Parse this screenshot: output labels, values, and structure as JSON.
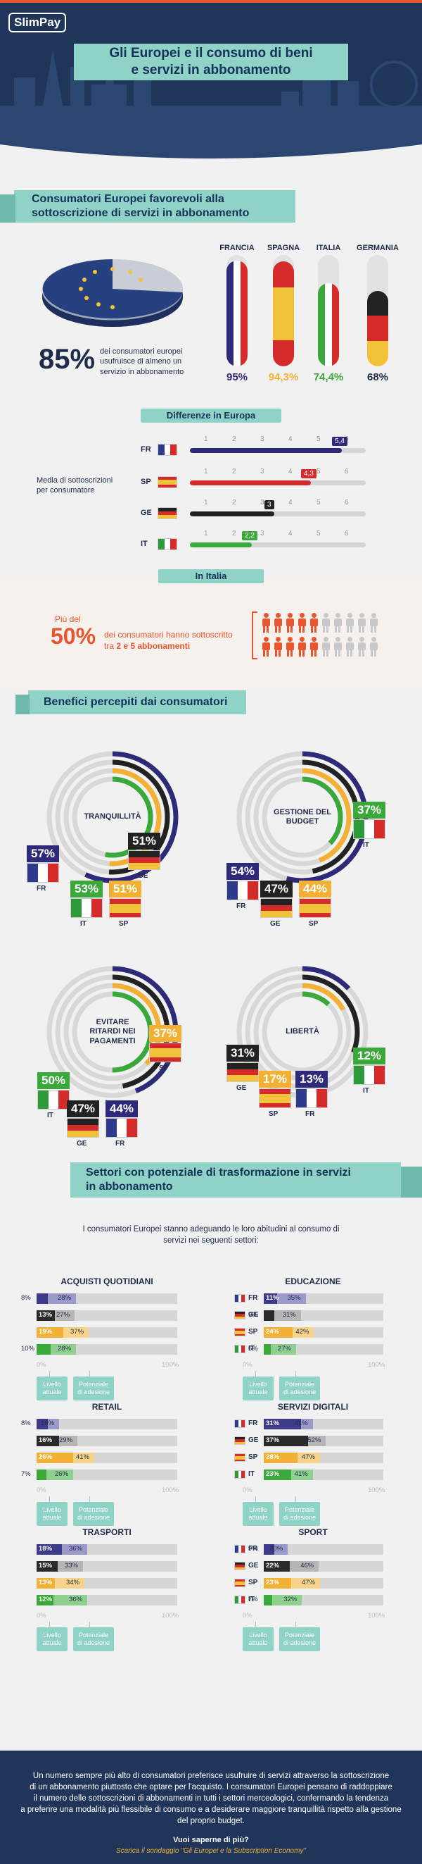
{
  "header": {
    "logo": "SlimPay",
    "title_line1": "Gli Europei e il consumo di beni",
    "title_line2": "e servizi in abbonamento"
  },
  "section1": {
    "title_line1": "Consumatori Europei favorevoli alla",
    "title_line2": "sottoscrizione di servizi in abbonamento",
    "big_pct": "85%",
    "big_text": "dei consumatori europei usufruisce di almeno un servizio in abbonamento",
    "countries": [
      {
        "name": "FRANCIA",
        "pct": "95%",
        "value": 95
      },
      {
        "name": "SPAGNA",
        "pct": "94,3%",
        "value": 94.3
      },
      {
        "name": "ITALIA",
        "pct": "74,4%",
        "value": 74.4
      },
      {
        "name": "GERMANIA",
        "pct": "68%",
        "value": 68
      }
    ]
  },
  "differences": {
    "title": "Differenze in Europa",
    "label": "Media di sottoscrizioni per consumatore",
    "ticks": [
      "1",
      "2",
      "3",
      "4",
      "5",
      "6"
    ],
    "rows": [
      {
        "code": "FR",
        "value": 5.4,
        "label": "5,4",
        "color": "#2e2a7a"
      },
      {
        "code": "SP",
        "value": 4.3,
        "label": "4,3",
        "color": "#d62b2b"
      },
      {
        "code": "GE",
        "value": 3,
        "label": "3",
        "color": "#222222"
      },
      {
        "code": "IT",
        "value": 2.2,
        "label": "2,2",
        "color": "#3aa83a"
      }
    ]
  },
  "italy": {
    "title": "In Italia",
    "prefix": "Più del",
    "pct": "50%",
    "text_line1": "dei consumatori hanno sottoscritto",
    "text_line2_pre": "tra ",
    "text_line2_bold": "2 e 5 abbonamenti"
  },
  "benefits": {
    "title": "Benefici percepiti dai consumatori",
    "groups": [
      {
        "label": "TRANQUILLITÀ",
        "values": {
          "FR": "57%",
          "GE": "51%",
          "IT": "53%",
          "SP": "51%"
        }
      },
      {
        "label": "GESTIONE DEL BUDGET",
        "values": {
          "IT": "37%",
          "FR": "54%",
          "GE": "47%",
          "SP": "44%"
        }
      },
      {
        "label": "EVITARE RITARDI NEI PAGAMENTI",
        "values": {
          "SP": "37%",
          "IT": "50%",
          "GE": "47%",
          "FR": "44%"
        }
      },
      {
        "label": "LIBERTÀ",
        "values": {
          "GE": "31%",
          "IT": "12%",
          "SP": "17%",
          "FR": "13%"
        }
      }
    ],
    "codes": {
      "FR": "FR",
      "GE": "GE",
      "IT": "IT",
      "SP": "SP"
    }
  },
  "sectors": {
    "title_line1": "Settori con potenziale di trasformazione in servizi",
    "title_line2": "in abbonamento",
    "intro_line1": "I consumatori Europei stanno adeguando le loro abitudini al consumo di",
    "intro_line2": "servizi nei seguenti settori:",
    "axis_start": "0%",
    "axis_end": "100%",
    "legend_current": "Livello attuale",
    "legend_potential": "Potenziale di adesione",
    "panels": [
      {
        "title": "ACQUISTI QUOTIDIANI",
        "rows": [
          {
            "code": "FR",
            "cur": 8,
            "cur_label": "8%",
            "pot": 28,
            "pot_label": "28%"
          },
          {
            "code": "GE",
            "cur": 13,
            "cur_label": "13%",
            "pot": 27,
            "pot_label": "27%"
          },
          {
            "code": "SP",
            "cur": 19,
            "cur_label": "19%",
            "pot": 37,
            "pot_label": "37%"
          },
          {
            "code": "IT",
            "cur": 10,
            "cur_label": "10%",
            "pot": 28,
            "pot_label": "28%"
          }
        ]
      },
      {
        "title": "EDUCAZIONE",
        "rows": [
          {
            "code": "FR",
            "cur": 11,
            "cur_label": "11%",
            "pot": 35,
            "pot_label": "35%"
          },
          {
            "code": "GE",
            "cur": 9,
            "cur_label": "9%",
            "pot": 31,
            "pot_label": "31%"
          },
          {
            "code": "SP",
            "cur": 24,
            "cur_label": "24%",
            "pot": 42,
            "pot_label": "42%"
          },
          {
            "code": "IT",
            "cur": 6,
            "cur_label": "6%",
            "pot": 27,
            "pot_label": "27%"
          }
        ]
      },
      {
        "title": "RETAIL",
        "rows": [
          {
            "code": "FR",
            "cur": 8,
            "cur_label": "8%",
            "pot": 16,
            "pot_label": "16%"
          },
          {
            "code": "GE",
            "cur": 16,
            "cur_label": "16%",
            "pot": 29,
            "pot_label": "29%"
          },
          {
            "code": "SP",
            "cur": 26,
            "cur_label": "26%",
            "pot": 41,
            "pot_label": "41%"
          },
          {
            "code": "IT",
            "cur": 7,
            "cur_label": "7%",
            "pot": 26,
            "pot_label": "26%"
          }
        ]
      },
      {
        "title": "SERVIZI DIGITALI",
        "rows": [
          {
            "code": "FR",
            "cur": 31,
            "cur_label": "31%",
            "pot": 41,
            "pot_label": "41%"
          },
          {
            "code": "GE",
            "cur": 37,
            "cur_label": "37%",
            "pot": 52,
            "pot_label": "52%"
          },
          {
            "code": "SP",
            "cur": 28,
            "cur_label": "28%",
            "pot": 47,
            "pot_label": "47%"
          },
          {
            "code": "IT",
            "cur": 23,
            "cur_label": "23%",
            "pot": 41,
            "pot_label": "41%"
          }
        ]
      },
      {
        "title": "TRASPORTI",
        "rows": [
          {
            "code": "FR",
            "cur": 18,
            "cur_label": "18%",
            "pot": 36,
            "pot_label": "36%"
          },
          {
            "code": "GE",
            "cur": 15,
            "cur_label": "15%",
            "pot": 33,
            "pot_label": "33%"
          },
          {
            "code": "SP",
            "cur": 13,
            "cur_label": "13%",
            "pot": 34,
            "pot_label": "34%"
          },
          {
            "code": "IT",
            "cur": 12,
            "cur_label": "12%",
            "pot": 36,
            "pot_label": "36%"
          }
        ]
      },
      {
        "title": "SPORT",
        "rows": [
          {
            "code": "FR",
            "cur": 9,
            "cur_label": "9%",
            "pot": 20,
            "pot_label": "20%"
          },
          {
            "code": "GE",
            "cur": 22,
            "cur_label": "22%",
            "pot": 46,
            "pot_label": "46%"
          },
          {
            "code": "SP",
            "cur": 23,
            "cur_label": "23%",
            "pot": 47,
            "pot_label": "47%"
          },
          {
            "code": "IT",
            "cur": 7,
            "cur_label": "7%",
            "pot": 32,
            "pot_label": "32%"
          }
        ]
      }
    ]
  },
  "footer": {
    "text_line1": "Un numero sempre più alto di consumatori preferisce usufruire di servizi attraverso la sottoscrizione",
    "text_line2": "di un abbonamento piuttosto che optare per l'acquisto. I consumatori Europei pensano di raddoppiare",
    "text_line3": "il numero delle sottoscrizioni di abbonamenti in tutti i settori merceologici, confermando la tendenza",
    "text_line4": "a preferire una modalità più flessibile di consumo e a desiderare maggiore tranquillità rispetto alla gestione",
    "text_line5": "del proprio budget.",
    "cta": "Vuoi saperne di più?",
    "link": "Scarica il sondaggio \"Gli Europei e la Subscription Economy\""
  },
  "colors": {
    "navy": "#1e2b4a",
    "teal": "#8fd2c6",
    "orange": "#e9552e",
    "FR": "#2e2a7a",
    "GE": "#222222",
    "SP": "#f2b134",
    "IT": "#3aa83a"
  }
}
